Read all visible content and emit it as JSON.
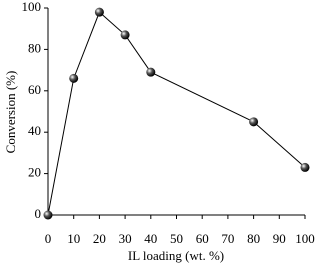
{
  "chart_data": {
    "type": "line",
    "x_label": "IL loading (wt. %)",
    "y_label": "Conversion (%)",
    "series": [
      {
        "name": "Conversion",
        "color": "#000000",
        "x": [
          0,
          10,
          20,
          30,
          40,
          80,
          100
        ],
        "values": [
          0,
          66,
          98,
          87,
          69,
          45,
          23
        ]
      }
    ],
    "xlim": [
      0,
      100
    ],
    "xticks": [
      0,
      10,
      20,
      30,
      40,
      50,
      60,
      70,
      80,
      90,
      100
    ],
    "ylim": [
      0,
      100
    ],
    "yticks": [
      0,
      20,
      40,
      60,
      80,
      100
    ],
    "grid": false
  }
}
